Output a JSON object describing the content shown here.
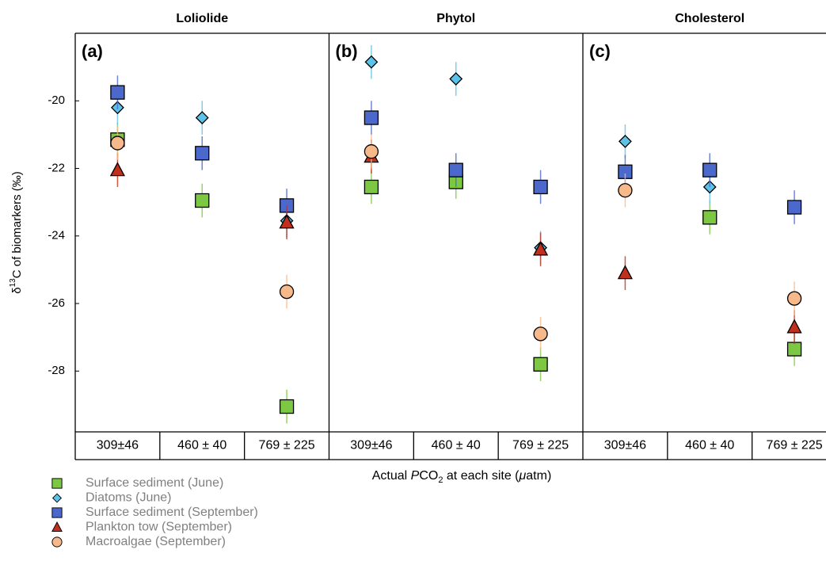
{
  "chart_data": [
    {
      "type": "scatter",
      "title": "Loliolide",
      "panel_label": "(a)",
      "categories": [
        "309±46",
        "460 ± 40",
        "769 ± 225"
      ],
      "series": [
        {
          "values": [
            -21.15,
            -22.95,
            -29.05
          ],
          "errors": [
            0.5,
            0.5,
            0.5
          ]
        },
        {
          "values": [
            -20.2,
            -20.5,
            -23.55
          ],
          "errors": [
            0.5,
            0.5,
            0.5
          ]
        },
        {
          "values": [
            -19.75,
            -21.55,
            -23.1
          ],
          "errors": [
            0.5,
            0.5,
            0.5
          ]
        },
        {
          "values": [
            -22.05,
            null,
            -23.6
          ],
          "errors": [
            0.5,
            null,
            0.5
          ]
        },
        {
          "values": [
            -21.25,
            null,
            -25.65
          ],
          "errors": [
            0.5,
            null,
            0.5
          ]
        }
      ]
    },
    {
      "type": "scatter",
      "title": "Phytol",
      "panel_label": "(b)",
      "categories": [
        "309±46",
        "460 ± 40",
        "769 ± 225"
      ],
      "series": [
        {
          "values": [
            -22.55,
            -22.4,
            -27.8
          ],
          "errors": [
            0.5,
            0.5,
            0.5
          ]
        },
        {
          "values": [
            -18.85,
            -19.35,
            -24.35
          ],
          "errors": [
            0.5,
            0.5,
            0.5
          ]
        },
        {
          "values": [
            -20.5,
            -22.05,
            -22.55
          ],
          "errors": [
            0.5,
            0.5,
            0.5
          ]
        },
        {
          "values": [
            -21.65,
            null,
            -24.4
          ],
          "errors": [
            0.5,
            null,
            0.5
          ]
        },
        {
          "values": [
            -21.5,
            null,
            -26.9
          ],
          "errors": [
            0.5,
            null,
            0.5
          ]
        }
      ]
    },
    {
      "type": "scatter",
      "title": "Cholesterol",
      "panel_label": "(c)",
      "categories": [
        "309±46",
        "460 ± 40",
        "769 ± 225"
      ],
      "series": [
        {
          "values": [
            null,
            -23.45,
            -27.35
          ],
          "errors": [
            null,
            0.5,
            0.5
          ]
        },
        {
          "values": [
            -21.2,
            -22.55,
            null
          ],
          "errors": [
            0.5,
            0.5,
            null
          ]
        },
        {
          "values": [
            -22.1,
            -22.05,
            -23.15
          ],
          "errors": [
            0.5,
            0.5,
            0.5
          ]
        },
        {
          "values": [
            -25.1,
            null,
            -26.7
          ],
          "errors": [
            0.5,
            null,
            0.5
          ]
        },
        {
          "values": [
            -22.65,
            null,
            -25.85
          ],
          "errors": [
            0.5,
            null,
            0.5
          ]
        }
      ]
    }
  ],
  "ylim": [
    -29.8,
    -18
  ],
  "yticks": [
    -20,
    -22,
    -24,
    -26,
    -28
  ],
  "ylabel": {
    "prefix": "δ",
    "sup": "13",
    "rest": "C of biomarkers (‰)"
  },
  "xlabel": [
    "Actual ",
    "P",
    "CO",
    "2",
    " at each site (",
    "μ",
    "atm)"
  ],
  "legend": [
    {
      "name": "Surface sediment (June)",
      "color": "#7cc843",
      "marker": "square"
    },
    {
      "name": "Diatoms (June)",
      "color": "#5bc3ea",
      "marker": "diamond"
    },
    {
      "name": "Surface sediment (September)",
      "color": "#4b68cc",
      "marker": "square"
    },
    {
      "name": "Plankton tow (September)",
      "color": "#c0301c",
      "marker": "triangle"
    },
    {
      "name": "Macroalgae (September)",
      "color": "#f8b98a",
      "marker": "circle"
    }
  ]
}
